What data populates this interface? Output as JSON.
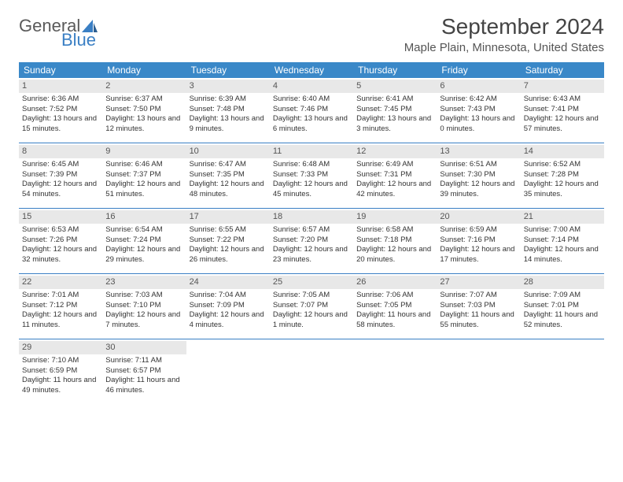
{
  "logo": {
    "line1": "General",
    "line2": "Blue",
    "accent": "#3a7fc4",
    "gray": "#5a5a5a"
  },
  "title": "September 2024",
  "location": "Maple Plain, Minnesota, United States",
  "colors": {
    "header_bg": "#3a88c8",
    "week_border": "#3a7fc4",
    "daynum_bg": "#e8e8e8"
  },
  "day_names": [
    "Sunday",
    "Monday",
    "Tuesday",
    "Wednesday",
    "Thursday",
    "Friday",
    "Saturday"
  ],
  "weeks": [
    [
      {
        "n": "1",
        "sr": "6:36 AM",
        "ss": "7:52 PM",
        "dl": "13 hours and 15 minutes."
      },
      {
        "n": "2",
        "sr": "6:37 AM",
        "ss": "7:50 PM",
        "dl": "13 hours and 12 minutes."
      },
      {
        "n": "3",
        "sr": "6:39 AM",
        "ss": "7:48 PM",
        "dl": "13 hours and 9 minutes."
      },
      {
        "n": "4",
        "sr": "6:40 AM",
        "ss": "7:46 PM",
        "dl": "13 hours and 6 minutes."
      },
      {
        "n": "5",
        "sr": "6:41 AM",
        "ss": "7:45 PM",
        "dl": "13 hours and 3 minutes."
      },
      {
        "n": "6",
        "sr": "6:42 AM",
        "ss": "7:43 PM",
        "dl": "13 hours and 0 minutes."
      },
      {
        "n": "7",
        "sr": "6:43 AM",
        "ss": "7:41 PM",
        "dl": "12 hours and 57 minutes."
      }
    ],
    [
      {
        "n": "8",
        "sr": "6:45 AM",
        "ss": "7:39 PM",
        "dl": "12 hours and 54 minutes."
      },
      {
        "n": "9",
        "sr": "6:46 AM",
        "ss": "7:37 PM",
        "dl": "12 hours and 51 minutes."
      },
      {
        "n": "10",
        "sr": "6:47 AM",
        "ss": "7:35 PM",
        "dl": "12 hours and 48 minutes."
      },
      {
        "n": "11",
        "sr": "6:48 AM",
        "ss": "7:33 PM",
        "dl": "12 hours and 45 minutes."
      },
      {
        "n": "12",
        "sr": "6:49 AM",
        "ss": "7:31 PM",
        "dl": "12 hours and 42 minutes."
      },
      {
        "n": "13",
        "sr": "6:51 AM",
        "ss": "7:30 PM",
        "dl": "12 hours and 39 minutes."
      },
      {
        "n": "14",
        "sr": "6:52 AM",
        "ss": "7:28 PM",
        "dl": "12 hours and 35 minutes."
      }
    ],
    [
      {
        "n": "15",
        "sr": "6:53 AM",
        "ss": "7:26 PM",
        "dl": "12 hours and 32 minutes."
      },
      {
        "n": "16",
        "sr": "6:54 AM",
        "ss": "7:24 PM",
        "dl": "12 hours and 29 minutes."
      },
      {
        "n": "17",
        "sr": "6:55 AM",
        "ss": "7:22 PM",
        "dl": "12 hours and 26 minutes."
      },
      {
        "n": "18",
        "sr": "6:57 AM",
        "ss": "7:20 PM",
        "dl": "12 hours and 23 minutes."
      },
      {
        "n": "19",
        "sr": "6:58 AM",
        "ss": "7:18 PM",
        "dl": "12 hours and 20 minutes."
      },
      {
        "n": "20",
        "sr": "6:59 AM",
        "ss": "7:16 PM",
        "dl": "12 hours and 17 minutes."
      },
      {
        "n": "21",
        "sr": "7:00 AM",
        "ss": "7:14 PM",
        "dl": "12 hours and 14 minutes."
      }
    ],
    [
      {
        "n": "22",
        "sr": "7:01 AM",
        "ss": "7:12 PM",
        "dl": "12 hours and 11 minutes."
      },
      {
        "n": "23",
        "sr": "7:03 AM",
        "ss": "7:10 PM",
        "dl": "12 hours and 7 minutes."
      },
      {
        "n": "24",
        "sr": "7:04 AM",
        "ss": "7:09 PM",
        "dl": "12 hours and 4 minutes."
      },
      {
        "n": "25",
        "sr": "7:05 AM",
        "ss": "7:07 PM",
        "dl": "12 hours and 1 minute."
      },
      {
        "n": "26",
        "sr": "7:06 AM",
        "ss": "7:05 PM",
        "dl": "11 hours and 58 minutes."
      },
      {
        "n": "27",
        "sr": "7:07 AM",
        "ss": "7:03 PM",
        "dl": "11 hours and 55 minutes."
      },
      {
        "n": "28",
        "sr": "7:09 AM",
        "ss": "7:01 PM",
        "dl": "11 hours and 52 minutes."
      }
    ],
    [
      {
        "n": "29",
        "sr": "7:10 AM",
        "ss": "6:59 PM",
        "dl": "11 hours and 49 minutes."
      },
      {
        "n": "30",
        "sr": "7:11 AM",
        "ss": "6:57 PM",
        "dl": "11 hours and 46 minutes."
      },
      null,
      null,
      null,
      null,
      null
    ]
  ],
  "labels": {
    "sunrise": "Sunrise:",
    "sunset": "Sunset:",
    "daylight": "Daylight:"
  }
}
